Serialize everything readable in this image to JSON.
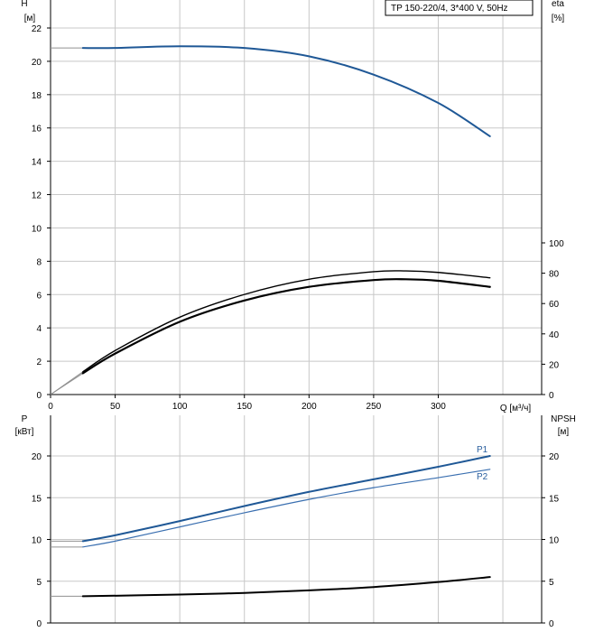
{
  "legend": "TP 150-220/4, 3*400 V, 50Hz",
  "colors": {
    "blue": "#1f5896",
    "blue_light": "#3a6fb0",
    "black": "#000000",
    "grid": "#c8c8c8",
    "gray_ext": "#909090"
  },
  "chart_data": [
    {
      "type": "line",
      "panel": "upper",
      "x_label": "Q [м³/ч]",
      "x_ticks": [
        "0",
        "50",
        "100",
        "150",
        "200",
        "250",
        "300"
      ],
      "xlim": [
        0,
        380
      ],
      "left_axis": {
        "label_line1": "H",
        "label_line2": "[м]",
        "ylim": [
          0,
          24
        ],
        "ticks": [
          "0",
          "2",
          "4",
          "6",
          "8",
          "10",
          "12",
          "14",
          "16",
          "18",
          "20",
          "22"
        ]
      },
      "right_axis": {
        "label_line1": "eta",
        "label_line2": "[%]",
        "ylim": [
          0,
          100
        ],
        "ticks": [
          "0",
          "20",
          "40",
          "60",
          "80",
          "100"
        ]
      },
      "series": [
        {
          "axis": "left",
          "color": "blue",
          "width": 2,
          "x": [
            25,
            50,
            100,
            150,
            200,
            250,
            300,
            340
          ],
          "y": [
            20.8,
            20.8,
            20.9,
            20.8,
            20.3,
            19.2,
            17.5,
            15.5
          ]
        },
        {
          "axis": "right",
          "color": "black",
          "width": 1.4,
          "x": [
            25,
            50,
            100,
            150,
            200,
            250,
            275,
            300,
            340
          ],
          "y": [
            15,
            29,
            51,
            66,
            76,
            81,
            81.5,
            80.5,
            77
          ]
        },
        {
          "axis": "right",
          "color": "black",
          "width": 2.2,
          "x": [
            25,
            50,
            100,
            150,
            200,
            250,
            275,
            300,
            340
          ],
          "y": [
            14,
            27,
            48,
            62,
            71,
            75.5,
            76,
            75,
            71
          ]
        }
      ]
    },
    {
      "type": "line",
      "panel": "lower",
      "xlim": [
        0,
        380
      ],
      "left_axis": {
        "label_line1": "P",
        "label_line2": "[кВт]",
        "ylim": [
          0,
          25
        ],
        "ticks": [
          "0",
          "5",
          "10",
          "15",
          "20"
        ]
      },
      "right_axis": {
        "label_line1": "NPSH",
        "label_line2": "[м]",
        "ylim": [
          0,
          25
        ],
        "ticks": [
          "0",
          "5",
          "10",
          "15",
          "20"
        ]
      },
      "series": [
        {
          "name": "P1",
          "axis": "left",
          "color": "blue",
          "width": 2,
          "x": [
            25,
            50,
            100,
            150,
            200,
            250,
            300,
            340
          ],
          "y": [
            9.8,
            10.5,
            12.2,
            14.0,
            15.7,
            17.2,
            18.7,
            20.0
          ]
        },
        {
          "name": "P2",
          "axis": "left",
          "color": "blue_light",
          "width": 1.2,
          "x": [
            25,
            50,
            100,
            150,
            200,
            250,
            300,
            340
          ],
          "y": [
            9.1,
            9.8,
            11.5,
            13.2,
            14.8,
            16.2,
            17.4,
            18.4
          ]
        },
        {
          "axis": "right",
          "color": "black",
          "width": 2,
          "x": [
            25,
            100,
            150,
            200,
            250,
            300,
            340
          ],
          "y": [
            3.2,
            3.4,
            3.6,
            3.9,
            4.3,
            4.9,
            5.5
          ]
        }
      ]
    }
  ]
}
